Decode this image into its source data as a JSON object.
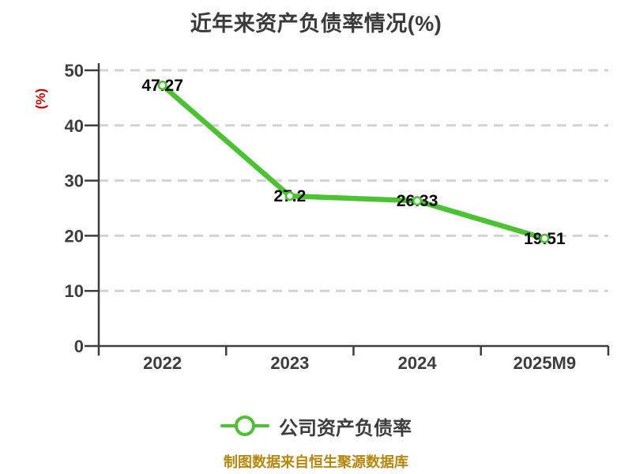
{
  "chart_data": {
    "type": "line",
    "title": "近年来资产负债率情况(%)",
    "xlabel": "",
    "ylabel": "(%)",
    "categories": [
      "2022",
      "2023",
      "2024",
      "2025M9"
    ],
    "series": [
      {
        "name": "公司资产负债率",
        "values": [
          47.27,
          27.2,
          26.33,
          19.51
        ]
      }
    ],
    "data_labels": [
      "47.27",
      "27.2",
      "26.33",
      "19.51"
    ],
    "ylim": [
      0,
      50
    ],
    "ytick_step": 10,
    "yticks": [
      0,
      10,
      20,
      30,
      40,
      50
    ],
    "grid": "horizontal-dashed",
    "legend_position": "bottom-center",
    "marker": "white-circle-green-ring"
  },
  "legend": {
    "label": "公司资产负债率"
  },
  "source_note": {
    "text": "制图数据来自恒生聚源数据库"
  },
  "colors": {
    "line": "#4bc232",
    "marker_fill": "#ffffff",
    "title": "#3a3a3a",
    "axis": "#3d3d3d",
    "tick_label": "#3d3d3d",
    "grid": "#d3d3d3",
    "data_label": "#0a0a0a",
    "ylabel": "#d40000",
    "source": "#b8860b",
    "background": "#ffffff"
  }
}
